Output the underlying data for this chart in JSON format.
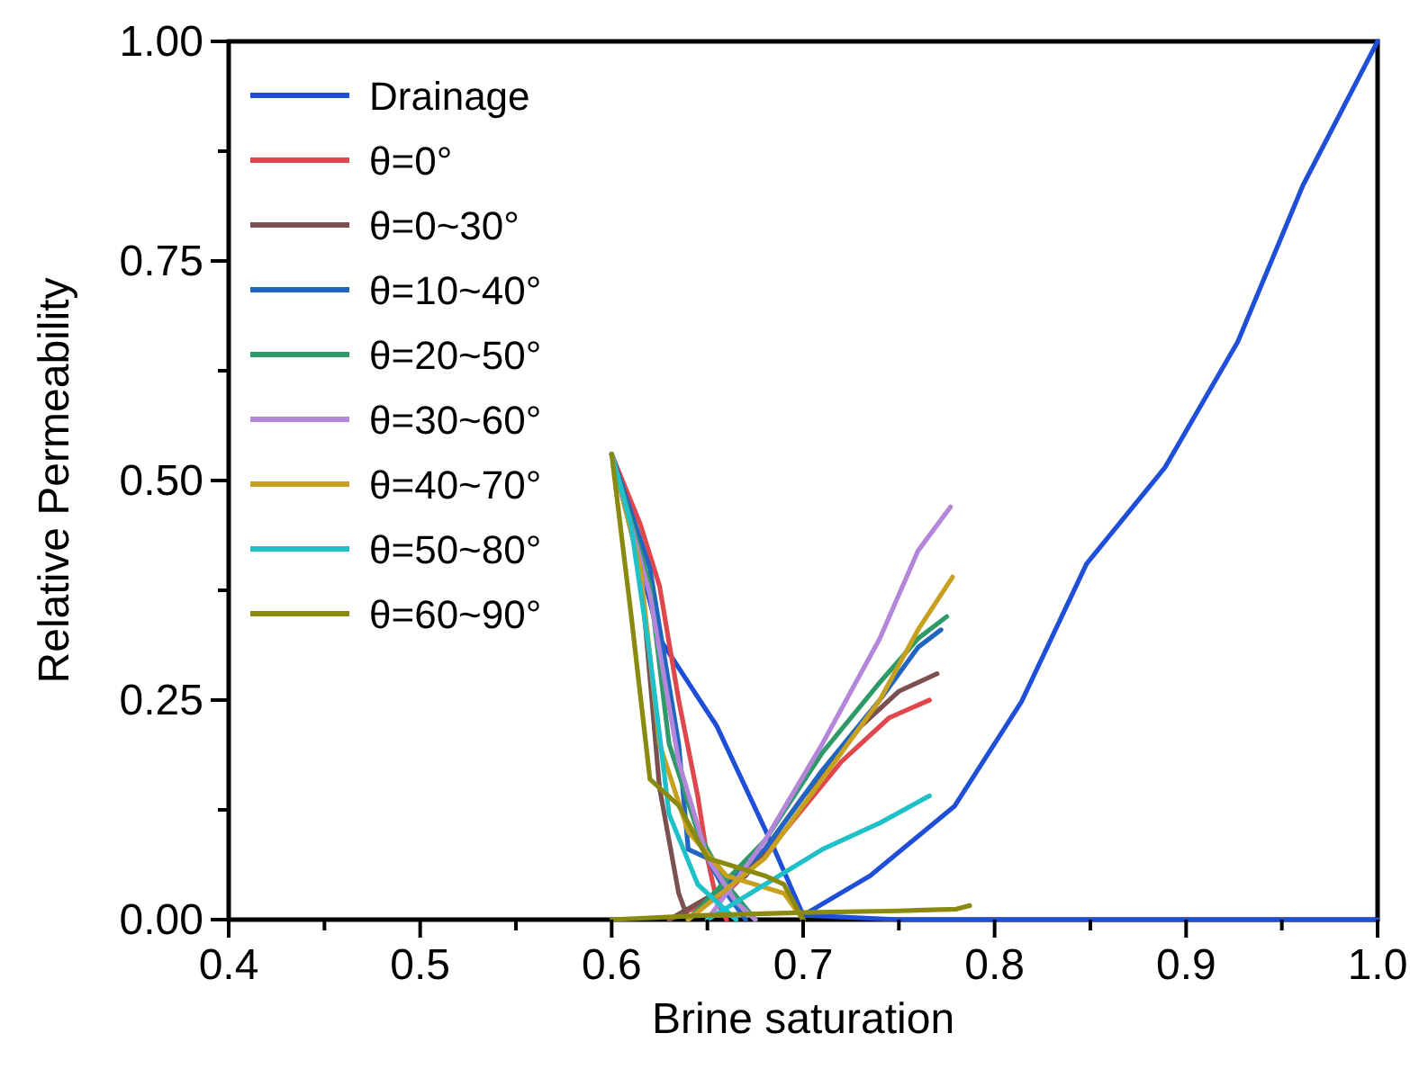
{
  "chart_data": {
    "type": "line",
    "xlabel": "Brine saturation",
    "ylabel": "Relative Permeability",
    "xlim": [
      0.4,
      1.0
    ],
    "ylim": [
      0,
      1.0
    ],
    "xticks": [
      0.4,
      {
        "value": 0.45,
        "label": null
      },
      0.5,
      {
        "value": 0.55,
        "label": null
      },
      0.6,
      {
        "value": 0.65,
        "label": null
      },
      0.7,
      {
        "value": 0.75,
        "label": null
      },
      0.8,
      {
        "value": 0.85,
        "label": null
      },
      0.9,
      {
        "value": 0.95,
        "label": null
      },
      {
        "value": 1.0,
        "label": "1.0"
      }
    ],
    "yticks": [
      {
        "value": 0,
        "label": "0.00"
      },
      {
        "value": 0.125,
        "label": null
      },
      {
        "value": 0.25,
        "label": "0.25"
      },
      {
        "value": 0.375,
        "label": null
      },
      {
        "value": 0.5,
        "label": "0.50"
      },
      {
        "value": 0.625,
        "label": null
      },
      {
        "value": 0.75,
        "label": "0.75"
      },
      {
        "value": 0.875,
        "label": null
      },
      {
        "value": 1.0,
        "label": "1.00"
      }
    ],
    "grid": false,
    "legend": "top left",
    "marker": "none",
    "line_style": "solid",
    "series": [
      {
        "name": "Drainage",
        "color": "#1f4fd8",
        "x": [
          0.6,
          0.625,
          0.655,
          0.685,
          0.7,
          0.75,
          0.8,
          0.85,
          0.9,
          0.95,
          1.0
        ],
        "values": [
          0.53,
          0.32,
          0.22,
          0.08,
          0.005,
          0,
          0,
          0,
          0,
          0,
          0
        ]
      },
      {
        "color": "#1f4fd8",
        "x": [
          0.7,
          0.735,
          0.779,
          0.814,
          0.848,
          0.889,
          0.927,
          0.961,
          1.0
        ],
        "values": [
          0.005,
          0.05,
          0.129,
          0.248,
          0.405,
          0.515,
          0.658,
          0.836,
          1.0
        ]
      },
      {
        "name": "θ=0°",
        "color": "#e0474c",
        "x": [
          0.6,
          0.615,
          0.625,
          0.635,
          0.645,
          0.65,
          0.655,
          0.66,
          null,
          0.63,
          0.66,
          0.69,
          0.72,
          0.745,
          0.766
        ],
        "values": [
          0.53,
          0.45,
          0.38,
          0.25,
          0.14,
          0.07,
          0.02,
          0,
          null,
          0,
          0.03,
          0.1,
          0.18,
          0.23,
          0.25
        ]
      },
      {
        "name": "θ=0~30°",
        "color": "#7a5050",
        "x": [
          0.6,
          0.615,
          0.625,
          0.635,
          0.64,
          null,
          0.63,
          0.67,
          0.7,
          0.73,
          0.75,
          0.77
        ],
        "values": [
          0.53,
          0.4,
          0.15,
          0.03,
          0,
          null,
          0,
          0.05,
          0.14,
          0.22,
          0.26,
          0.28
        ]
      },
      {
        "name": "θ=10~40°",
        "color": "#2066c0",
        "x": [
          0.6,
          0.62,
          0.635,
          0.64,
          0.65,
          0.66,
          0.67,
          null,
          0.64,
          0.68,
          0.71,
          0.74,
          0.76,
          0.772
        ],
        "values": [
          0.53,
          0.4,
          0.2,
          0.08,
          0.07,
          0.03,
          0,
          null,
          0,
          0.08,
          0.17,
          0.25,
          0.31,
          0.33
        ]
      },
      {
        "name": "θ=20~50°",
        "color": "#2e9a68",
        "x": [
          0.6,
          0.62,
          0.63,
          0.645,
          0.66,
          0.675,
          null,
          0.64,
          0.68,
          0.71,
          0.74,
          0.76,
          0.775
        ],
        "values": [
          0.53,
          0.38,
          0.2,
          0.1,
          0.04,
          0,
          null,
          0,
          0.09,
          0.19,
          0.27,
          0.32,
          0.345
        ]
      },
      {
        "name": "θ=30~60°",
        "color": "#b386d9",
        "x": [
          0.6,
          0.62,
          0.635,
          0.65,
          0.665,
          0.675,
          null,
          0.65,
          0.68,
          0.71,
          0.74,
          0.76,
          0.777
        ],
        "values": [
          0.53,
          0.37,
          0.18,
          0.07,
          0.02,
          0,
          null,
          0,
          0.09,
          0.2,
          0.32,
          0.42,
          0.47
        ]
      },
      {
        "name": "θ=40~70°",
        "color": "#c8a020",
        "x": [
          0.6,
          0.615,
          0.625,
          0.64,
          0.66,
          0.69,
          0.7,
          null,
          0.64,
          0.68,
          0.71,
          0.74,
          0.76,
          0.778
        ],
        "values": [
          0.53,
          0.4,
          0.2,
          0.1,
          0.05,
          0.03,
          0,
          null,
          0,
          0.07,
          0.16,
          0.25,
          0.33,
          0.39
        ]
      },
      {
        "name": "θ=50~80°",
        "color": "#20c0c8",
        "x": [
          0.6,
          0.61,
          0.62,
          0.63,
          0.645,
          0.665,
          null,
          0.65,
          0.68,
          0.71,
          0.74,
          0.766
        ],
        "values": [
          0.53,
          0.45,
          0.3,
          0.12,
          0.04,
          0,
          null,
          0,
          0.04,
          0.08,
          0.11,
          0.141
        ]
      },
      {
        "name": "θ=60~90°",
        "color": "#8a8a10",
        "x": [
          0.6,
          0.61,
          0.62,
          0.635,
          0.65,
          0.68,
          0.69,
          0.7,
          null,
          0.6,
          0.65,
          0.7,
          0.75,
          0.78,
          0.787
        ],
        "values": [
          0.53,
          0.35,
          0.16,
          0.13,
          0.07,
          0.05,
          0.04,
          0,
          null,
          0,
          0.005,
          0.008,
          0.01,
          0.012,
          0.016
        ]
      }
    ]
  }
}
